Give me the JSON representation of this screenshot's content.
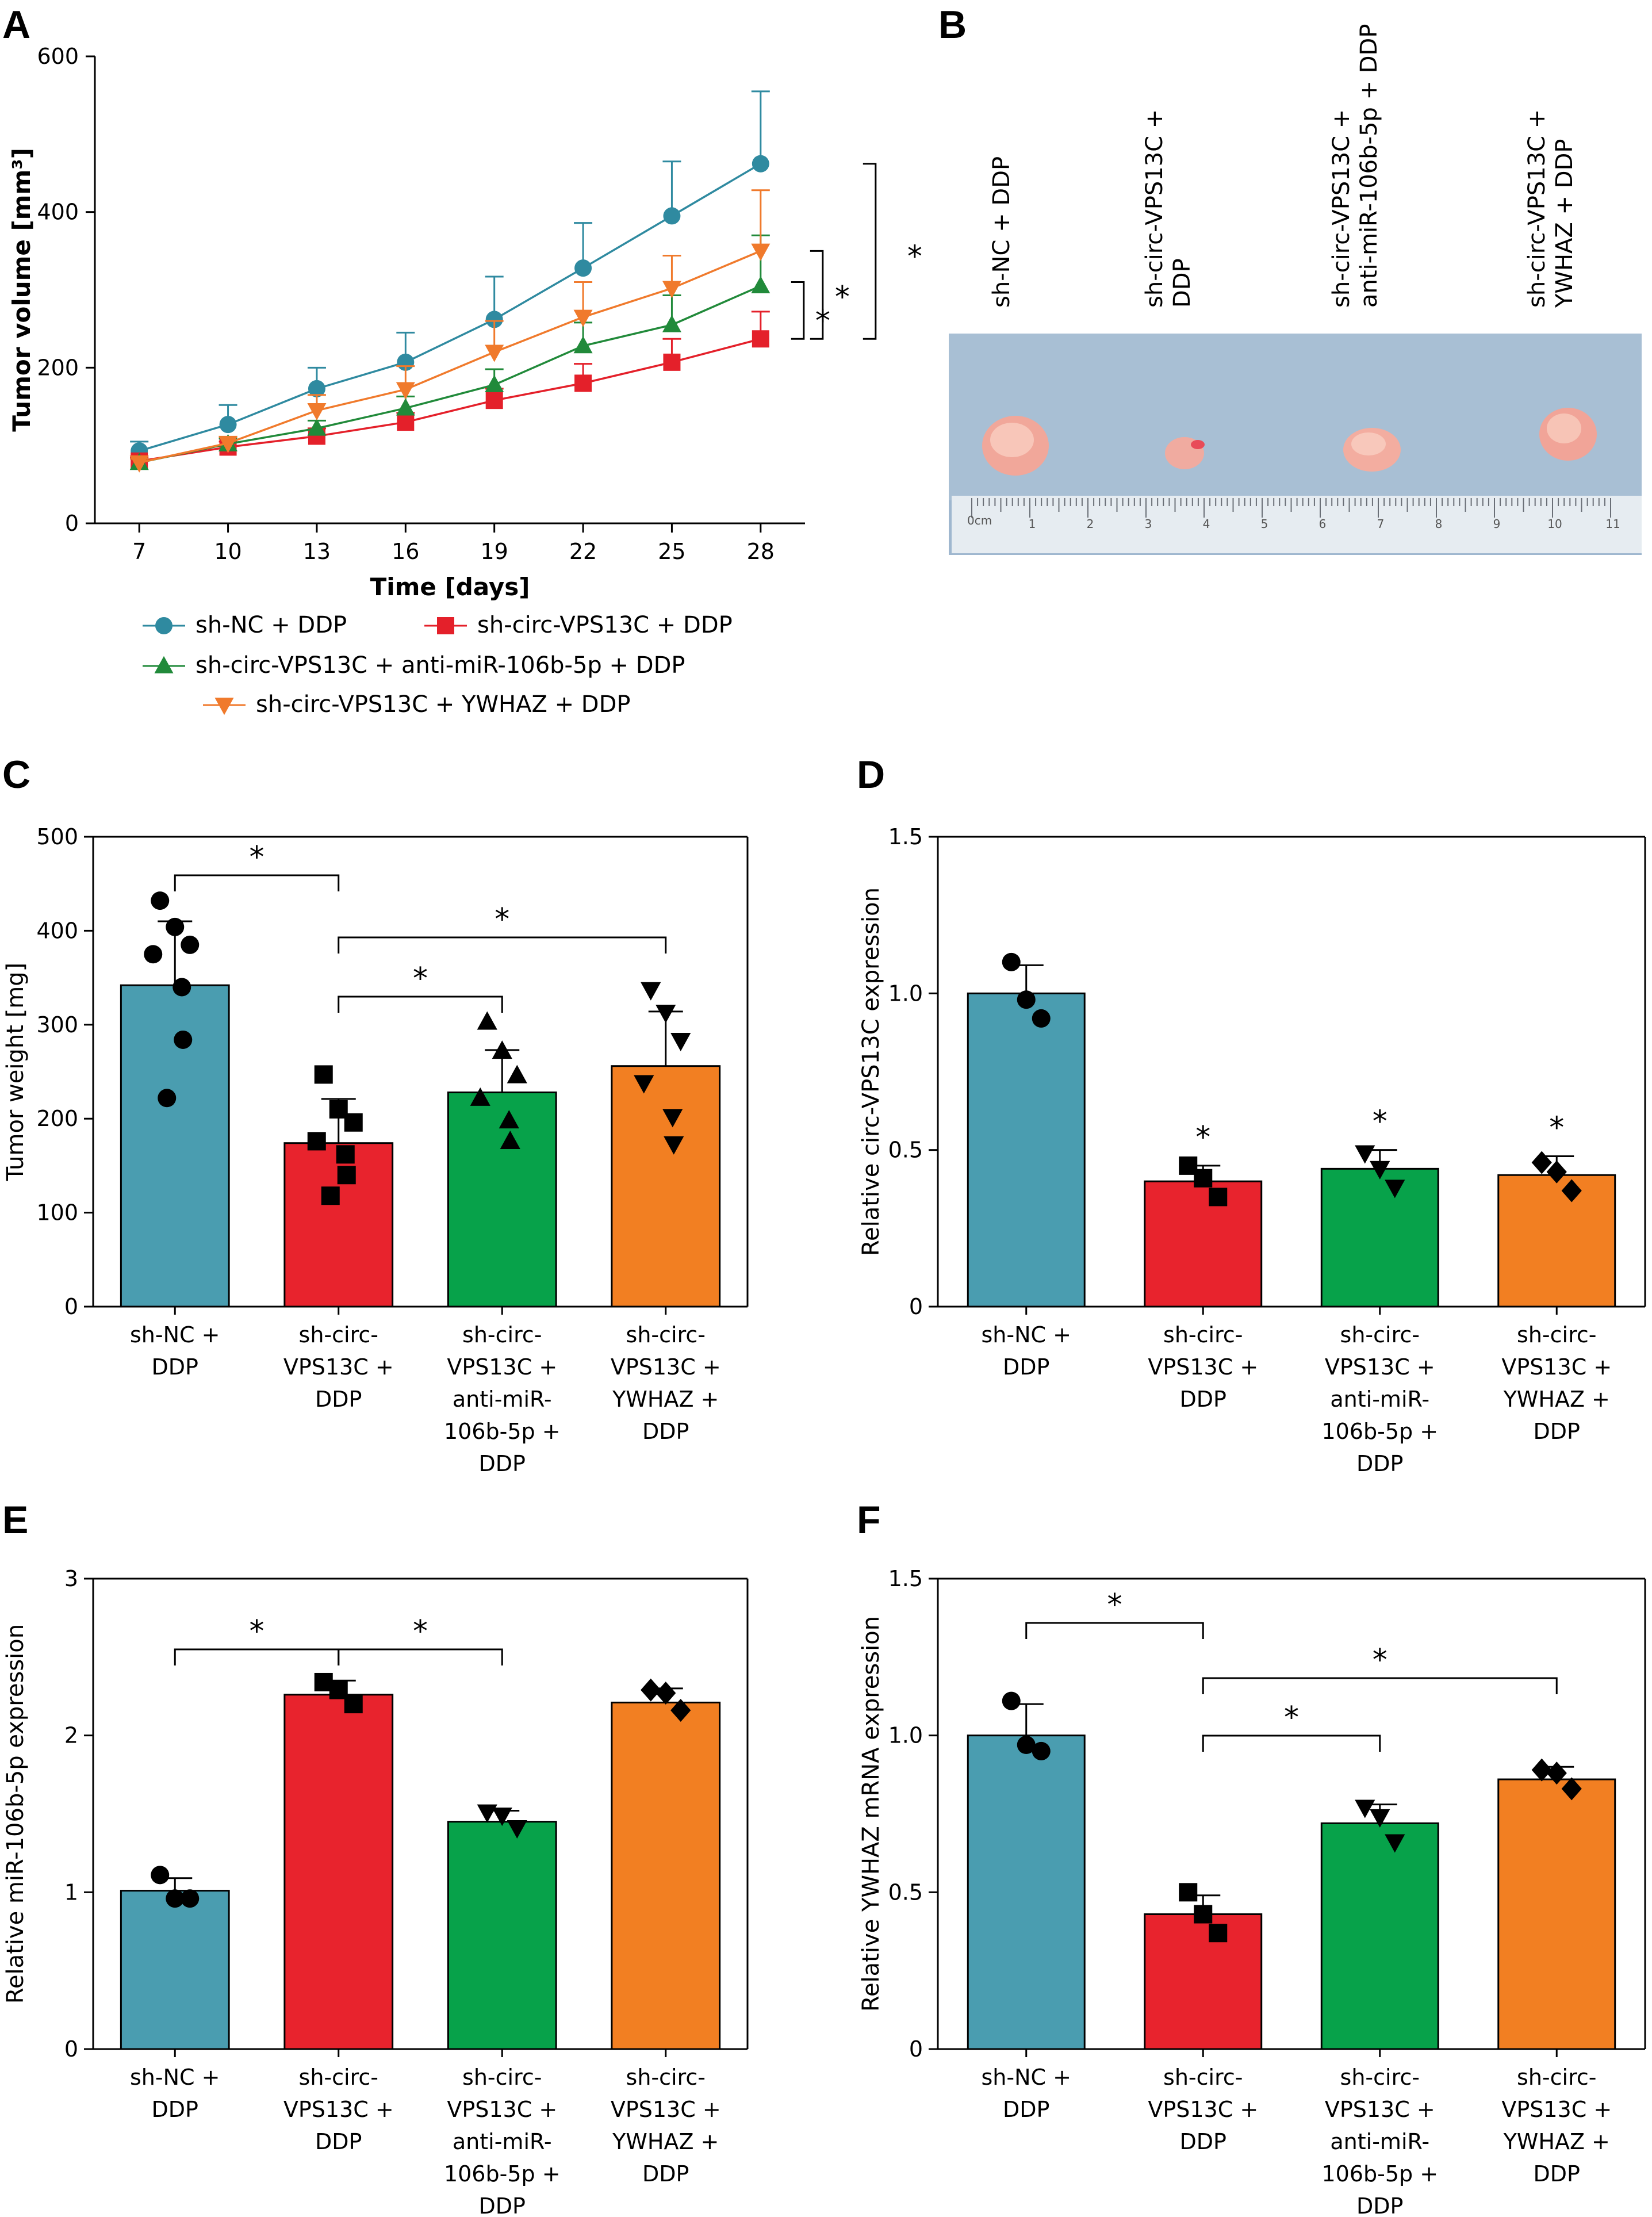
{
  "panels": {
    "A": "A",
    "B": "B",
    "C": "C",
    "D": "D",
    "E": "E",
    "F": "F"
  },
  "colors": {
    "teal": "#4a9db0",
    "red": "#e8232d",
    "green": "#07a24a",
    "orange": "#f27f22",
    "line_teal": "#2f8aa0",
    "line_red": "#e4202a",
    "line_green": "#218a3a",
    "line_orange": "#f07a2c"
  },
  "photo": {
    "labels": [
      "sh-NC + DDP",
      "sh-circ-VPS13C +\nDDP",
      "sh-circ-VPS13C +\nanti-miR-106b-5p + DDP",
      "sh-circ-VPS13C +\nYWHAZ + DDP"
    ],
    "ruler_text": "0cm"
  },
  "chart_data": [
    {
      "panel": "A",
      "type": "line",
      "xlabel": "Time [days]",
      "ylabel": "Tumor volume [mm³]",
      "x": [
        7,
        10,
        13,
        16,
        19,
        22,
        25,
        28
      ],
      "ylim": [
        0,
        600
      ],
      "yticks": [
        0,
        200,
        400,
        600
      ],
      "series": [
        {
          "name": "sh-NC + DDP",
          "marker": "circle",
          "color": "#2f8aa0",
          "values": [
            93,
            127,
            173,
            207,
            262,
            328,
            395,
            462
          ],
          "errors": [
            12,
            25,
            27,
            38,
            55,
            58,
            70,
            93
          ]
        },
        {
          "name": "sh-circ-VPS13C + DDP",
          "marker": "square",
          "color": "#e4202a",
          "values": [
            80,
            98,
            112,
            130,
            158,
            180,
            207,
            237
          ],
          "errors": [
            5,
            7,
            10,
            12,
            15,
            25,
            30,
            35
          ]
        },
        {
          "name": "sh-circ-VPS13C + anti-miR-106b-5p + DDP",
          "marker": "triangle-up",
          "color": "#218a3a",
          "values": [
            78,
            102,
            122,
            148,
            178,
            228,
            255,
            305
          ],
          "errors": [
            5,
            7,
            10,
            15,
            20,
            30,
            38,
            65
          ]
        },
        {
          "name": "sh-circ-VPS13C + YWHAZ + DDP",
          "marker": "triangle-down",
          "color": "#f07a2c",
          "values": [
            78,
            103,
            145,
            172,
            220,
            265,
            302,
            350
          ],
          "errors": [
            5,
            8,
            20,
            30,
            40,
            45,
            42,
            78
          ]
        }
      ],
      "significance": [
        "*",
        "*",
        "*"
      ]
    },
    {
      "panel": "C",
      "type": "bar",
      "ylabel": "Tumor weight [mg]",
      "categories": [
        "sh-NC +\nDDP",
        "sh-circ-\nVPS13C +\nDDP",
        "sh-circ-\nVPS13C +\nanti-miR-\n106b-5p +\nDDP",
        "sh-circ-\nVPS13C +\nYWHAZ +\nDDP"
      ],
      "ylim": [
        0,
        500
      ],
      "yticks": [
        0,
        100,
        200,
        300,
        400,
        500
      ],
      "values": [
        342,
        174,
        228,
        256
      ],
      "errors": [
        68,
        47,
        45,
        58
      ],
      "markers": [
        "circle",
        "square",
        "triangle-up",
        "triangle-down"
      ],
      "points": [
        [
          432,
          404,
          385,
          375,
          340,
          284,
          222
        ],
        [
          247,
          210,
          196,
          176,
          162,
          140,
          118
        ],
        [
          303,
          272,
          246,
          222,
          198,
          176
        ],
        [
          337,
          313,
          283,
          238,
          202,
          173
        ]
      ],
      "significance": [
        "*",
        "*",
        "*"
      ]
    },
    {
      "panel": "D",
      "type": "bar",
      "ylabel": "Relative circ-VPS13C expression",
      "categories": [
        "sh-NC +\nDDP",
        "sh-circ-\nVPS13C +\nDDP",
        "sh-circ-\nVPS13C +\nanti-miR-\n106b-5p +\nDDP",
        "sh-circ-\nVPS13C +\nYWHAZ +\nDDP"
      ],
      "ylim": [
        0,
        1.5
      ],
      "yticks": [
        0,
        0.5,
        1.0,
        1.5
      ],
      "ytick_labels": [
        "0",
        "0.5",
        "1.0",
        "1.5"
      ],
      "values": [
        1.0,
        0.4,
        0.44,
        0.42
      ],
      "errors": [
        0.09,
        0.05,
        0.06,
        0.06
      ],
      "markers": [
        "circle",
        "square",
        "triangle-down",
        "diamond"
      ],
      "points": [
        [
          1.1,
          0.98,
          0.92
        ],
        [
          0.45,
          0.41,
          0.35
        ],
        [
          0.49,
          0.44,
          0.38
        ],
        [
          0.46,
          0.43,
          0.37
        ]
      ],
      "significance": [
        "",
        "*",
        "*",
        "*"
      ]
    },
    {
      "panel": "E",
      "type": "bar",
      "ylabel": "Relative miR-106b-5p expression",
      "categories": [
        "sh-NC +\nDDP",
        "sh-circ-\nVPS13C +\nDDP",
        "sh-circ-\nVPS13C +\nanti-miR-\n106b-5p +\nDDP",
        "sh-circ-\nVPS13C +\nYWHAZ +\nDDP"
      ],
      "ylim": [
        0,
        3
      ],
      "yticks": [
        0,
        1,
        2,
        3
      ],
      "values": [
        1.01,
        2.26,
        1.45,
        2.21
      ],
      "errors": [
        0.08,
        0.09,
        0.07,
        0.09
      ],
      "markers": [
        "circle",
        "square",
        "triangle-down",
        "diamond"
      ],
      "points": [
        [
          1.11,
          0.96,
          0.96
        ],
        [
          2.34,
          2.29,
          2.2
        ],
        [
          1.51,
          1.49,
          1.41
        ],
        [
          2.29,
          2.27,
          2.16
        ]
      ],
      "significance": [
        "*",
        "*"
      ]
    },
    {
      "panel": "F",
      "type": "bar",
      "ylabel": "Relative YWHAZ mRNA expression",
      "categories": [
        "sh-NC +\nDDP",
        "sh-circ-\nVPS13C +\nDDP",
        "sh-circ-\nVPS13C +\nanti-miR-\n106b-5p +\nDDP",
        "sh-circ-\nVPS13C +\nYWHAZ +\nDDP"
      ],
      "ylim": [
        0,
        1.5
      ],
      "yticks": [
        0,
        0.5,
        1.0,
        1.5
      ],
      "ytick_labels": [
        "0",
        "0.5",
        "1.0",
        "1.5"
      ],
      "values": [
        1.0,
        0.43,
        0.72,
        0.86
      ],
      "errors": [
        0.1,
        0.06,
        0.06,
        0.04
      ],
      "markers": [
        "circle",
        "square",
        "triangle-down",
        "diamond"
      ],
      "points": [
        [
          1.11,
          0.97,
          0.95
        ],
        [
          0.5,
          0.43,
          0.37
        ],
        [
          0.77,
          0.74,
          0.66
        ],
        [
          0.89,
          0.88,
          0.83
        ]
      ],
      "significance": [
        "*",
        "*",
        "*"
      ]
    }
  ]
}
